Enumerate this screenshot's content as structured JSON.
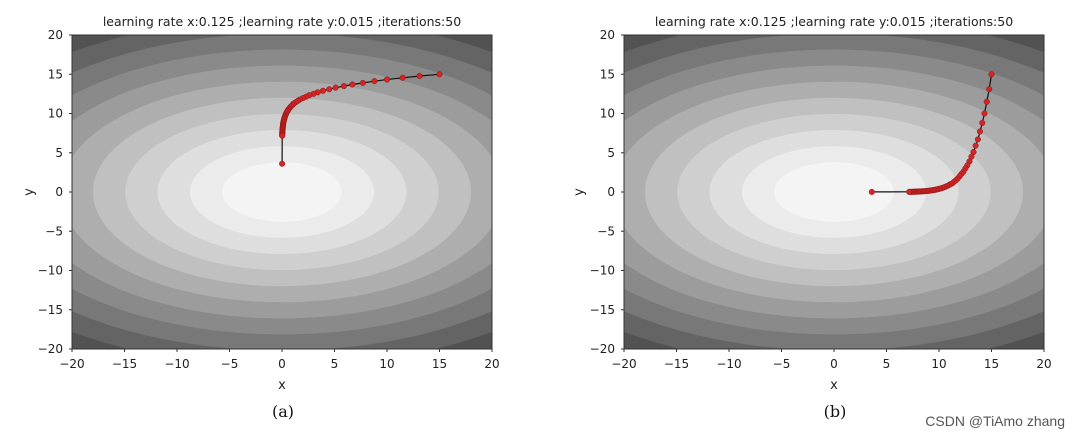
{
  "chart_data": [
    {
      "type": "contour",
      "title": "learning rate x:0.125 ;learning rate y:0.015 ;iterations:50",
      "xlabel": "x",
      "ylabel": "y",
      "xlim": [
        -20,
        20
      ],
      "ylim": [
        -20,
        20
      ],
      "xticks": [
        "-20",
        "-15",
        "-10",
        "-5",
        "0",
        "5",
        "10",
        "15",
        "20"
      ],
      "yticks": [
        "20",
        "15",
        "10",
        "5",
        "0",
        "-5",
        "-10",
        "-15",
        "-20"
      ],
      "caption": "(a)",
      "contour_axis_ratio": 1.5,
      "path": {
        "x": [
          15,
          13.1,
          11.5,
          10.0,
          8.8,
          7.7,
          6.7,
          5.9,
          5.1,
          4.5,
          3.9,
          3.4,
          3.0,
          2.6,
          2.3,
          2.0,
          1.7,
          1.5,
          1.3,
          1.1,
          1.0,
          0.87,
          0.76,
          0.66,
          0.58,
          0.51,
          0.44,
          0.39,
          0.34,
          0.3,
          0.26,
          0.23,
          0.2,
          0.17,
          0.15,
          0.13,
          0.11,
          0.1,
          0.09,
          0.08,
          0.07,
          0.06,
          0.05,
          0.04,
          0.04,
          0.03,
          0.03,
          0.02,
          0.02,
          0.02,
          0.01
        ],
        "y": [
          15,
          14.78,
          14.55,
          14.33,
          14.12,
          13.9,
          13.7,
          13.49,
          13.29,
          13.09,
          12.9,
          12.7,
          12.51,
          12.33,
          12.14,
          11.96,
          11.78,
          11.61,
          11.43,
          11.26,
          11.09,
          10.93,
          10.76,
          10.6,
          10.44,
          10.29,
          10.13,
          9.98,
          9.83,
          9.69,
          9.54,
          9.4,
          9.26,
          9.12,
          8.98,
          8.85,
          8.71,
          8.58,
          8.45,
          8.33,
          8.2,
          8.08,
          7.96,
          7.84,
          7.72,
          7.61,
          7.49,
          7.38,
          7.27,
          7.16,
          3.6
        ]
      }
    },
    {
      "type": "contour",
      "title": "learning rate x:0.125 ;learning rate y:0.015 ;iterations:50",
      "xlabel": "x",
      "ylabel": "y",
      "xlim": [
        -20,
        20
      ],
      "ylim": [
        -20,
        20
      ],
      "xticks": [
        "-20",
        "-15",
        "-10",
        "-5",
        "0",
        "5",
        "10",
        "15",
        "20"
      ],
      "yticks": [
        "20",
        "15",
        "10",
        "5",
        "0",
        "-5",
        "-10",
        "-15",
        "-20"
      ],
      "caption": "(b)",
      "contour_axis_ratio": 1.5,
      "path": {
        "x": [
          15,
          14.78,
          14.55,
          14.33,
          14.12,
          13.9,
          13.7,
          13.49,
          13.29,
          13.09,
          12.9,
          12.7,
          12.51,
          12.33,
          12.14,
          11.96,
          11.78,
          11.61,
          11.43,
          11.26,
          11.09,
          10.93,
          10.76,
          10.6,
          10.44,
          10.29,
          10.13,
          9.98,
          9.83,
          9.69,
          9.54,
          9.4,
          9.26,
          9.12,
          8.98,
          8.85,
          8.71,
          8.58,
          8.45,
          8.33,
          8.2,
          8.08,
          7.96,
          7.84,
          7.72,
          7.61,
          7.49,
          7.38,
          7.27,
          7.16,
          3.6
        ],
        "y": [
          15,
          13.1,
          11.5,
          10.0,
          8.8,
          7.7,
          6.7,
          5.9,
          5.1,
          4.5,
          3.9,
          3.4,
          3.0,
          2.6,
          2.3,
          2.0,
          1.7,
          1.5,
          1.3,
          1.1,
          1.0,
          0.87,
          0.76,
          0.66,
          0.58,
          0.51,
          0.44,
          0.39,
          0.34,
          0.3,
          0.26,
          0.23,
          0.2,
          0.17,
          0.15,
          0.13,
          0.11,
          0.1,
          0.09,
          0.08,
          0.07,
          0.06,
          0.05,
          0.04,
          0.04,
          0.03,
          0.03,
          0.02,
          0.02,
          0.02,
          0.01
        ]
      }
    }
  ],
  "watermark": "CSDN @TiAmo zhang",
  "colors": {
    "contour_levels": [
      "#f4f4f4",
      "#ebebeb",
      "#dedede",
      "#cfcfcf",
      "#c0c0c0",
      "#aeaeae",
      "#9c9c9c",
      "#8a8a8a",
      "#787878",
      "#646464"
    ],
    "path_line": "#111111",
    "path_marker": "#d42424"
  }
}
